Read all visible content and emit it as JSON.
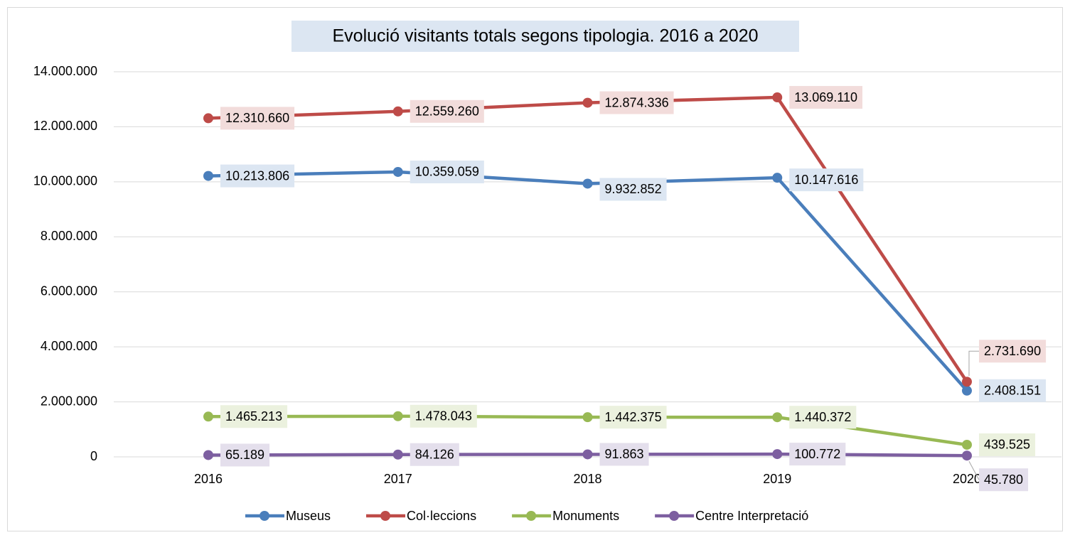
{
  "chart_data": {
    "type": "line",
    "title": "Evolució visitants totals segons tipologia. 2016 a 2020",
    "categories": [
      "2016",
      "2017",
      "2018",
      "2019",
      "2020"
    ],
    "series": [
      {
        "name": "Museus",
        "color": "#4a7ebb",
        "values": [
          10213806,
          10359059,
          9932852,
          10147616,
          2408151
        ],
        "value_labels": [
          "10.213.806",
          "10.359.059",
          "9.932.852",
          "10.147.616",
          "2.408.151"
        ]
      },
      {
        "name": "Col·leccions",
        "color": "#be4b48",
        "values": [
          12310660,
          12559260,
          12874336,
          13069110,
          2731690
        ],
        "value_labels": [
          "12.310.660",
          "12.559.260",
          "12.874.336",
          "13.069.110",
          "2.731.690"
        ]
      },
      {
        "name": "Monuments",
        "color": "#98b954",
        "values": [
          1465213,
          1478043,
          1442375,
          1440372,
          439525
        ],
        "value_labels": [
          "1.465.213",
          "1.478.043",
          "1.442.375",
          "1.440.372",
          "439.525"
        ]
      },
      {
        "name": "Centre Interpretació",
        "color": "#7d5fa0",
        "values": [
          65189,
          84126,
          91863,
          100772,
          45780
        ],
        "value_labels": [
          "65.189",
          "84.126",
          "91.863",
          "100.772",
          "45.780"
        ]
      }
    ],
    "ylim": [
      0,
      14000000
    ],
    "yticks": [
      0,
      {
        "value": 2000000,
        "label": "2.000.000"
      },
      {
        "value": 4000000,
        "label": "4.000.000"
      },
      {
        "value": 6000000,
        "label": "6.000.000"
      },
      {
        "value": 8000000,
        "label": "8.000.000"
      },
      {
        "value": 10000000,
        "label": "10.000.000"
      },
      {
        "value": 12000000,
        "label": "12.000.000"
      },
      {
        "value": 14000000,
        "label": "14.000.000"
      }
    ],
    "grid": true,
    "legend": "bottom"
  }
}
